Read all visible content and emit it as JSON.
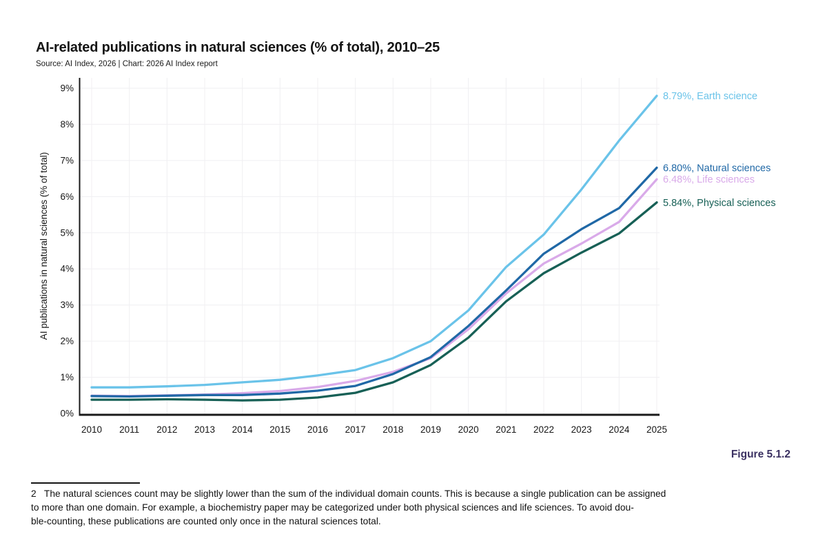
{
  "page": {
    "title": "AI-related publications in natural sciences (% of total), 2010–25",
    "source": "Source: AI Index, 2026 | Chart: 2026 AI Index report",
    "figure_label": "Figure 5.1.2",
    "footnote": "2   The natural sciences count may be slightly lower than the sum of the individual domain counts. This is because a single publication can be assigned\nto more than one domain. For example, a biochemistry paper may be categorized under both physical sciences and life sciences. To avoid dou-\nble-counting, these publications are counted only once in the natural sciences total."
  },
  "chart_data": {
    "type": "line",
    "title": "AI-related publications in natural sciences (% of total), 2010–25",
    "xlabel": "",
    "ylabel": "AI publications in natural sciences (% of total)",
    "x": [
      2010,
      2011,
      2012,
      2013,
      2014,
      2015,
      2016,
      2017,
      2018,
      2019,
      2020,
      2021,
      2022,
      2023,
      2024,
      2025
    ],
    "ylim": [
      0,
      9
    ],
    "yticks": [
      "0%",
      "1%",
      "2%",
      "3%",
      "4%",
      "5%",
      "6%",
      "7%",
      "8%",
      "9%"
    ],
    "grid": true,
    "legend_position": "end-labels-right",
    "colors": {
      "earth_science": "#6ac3e9",
      "natural_sciences": "#2068a6",
      "life_sciences": "#d9aae9",
      "physical_sciences": "#176056",
      "gridline": "#f1f0f3",
      "axis": "#1a1a1a",
      "figure_label_accent": "#3b3162"
    },
    "series": [
      {
        "name": "Earth science",
        "color": "#6ac3e9",
        "end_label": "8.79%, Earth science",
        "values": [
          0.72,
          0.72,
          0.75,
          0.79,
          0.86,
          0.93,
          1.05,
          1.2,
          1.53,
          2.0,
          2.85,
          4.05,
          4.95,
          6.2,
          7.55,
          8.79
        ]
      },
      {
        "name": "Life sciences",
        "color": "#d9aae9",
        "end_label": "6.48%, Life sciences",
        "values": [
          0.49,
          0.48,
          0.5,
          0.52,
          0.56,
          0.62,
          0.73,
          0.9,
          1.15,
          1.53,
          2.33,
          3.32,
          4.15,
          4.7,
          5.3,
          6.48
        ]
      },
      {
        "name": "Natural sciences",
        "color": "#2068a6",
        "end_label": "6.80%, Natural sciences",
        "values": [
          0.48,
          0.47,
          0.49,
          0.51,
          0.51,
          0.55,
          0.63,
          0.76,
          1.09,
          1.56,
          2.42,
          3.4,
          4.42,
          5.1,
          5.68,
          6.8
        ]
      },
      {
        "name": "Physical sciences",
        "color": "#176056",
        "end_label": "5.84%, Physical sciences",
        "values": [
          0.38,
          0.38,
          0.39,
          0.38,
          0.36,
          0.38,
          0.44,
          0.57,
          0.86,
          1.34,
          2.1,
          3.1,
          3.88,
          4.45,
          4.98,
          5.84
        ]
      }
    ]
  }
}
